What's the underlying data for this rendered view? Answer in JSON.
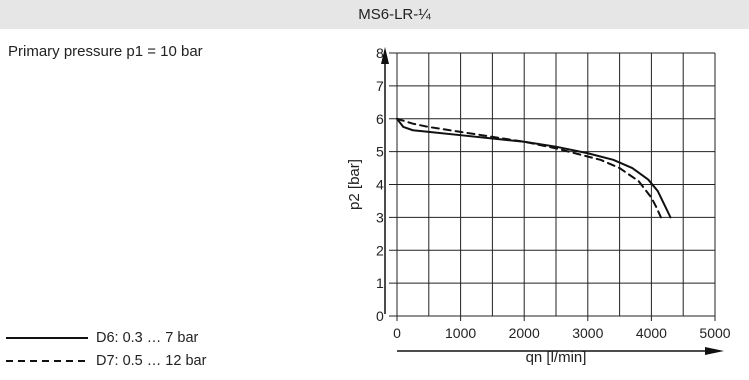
{
  "header": {
    "title": "MS6-LR-¼"
  },
  "condition_text": "Primary pressure p1 = 10 bar",
  "legend": [
    {
      "label": "D6: 0.3 … 7 bar",
      "style": "solid"
    },
    {
      "label": "D7: 0.5 … 12 bar",
      "style": "dashed"
    }
  ],
  "chart_data": {
    "type": "line",
    "title": "MS6-LR-¼",
    "xlabel": "qn [l/min]",
    "ylabel": "p2 [bar]",
    "xlim": [
      0,
      5000
    ],
    "ylim": [
      0,
      8
    ],
    "xticks": [
      "0",
      "1000",
      "2000",
      "3000",
      "4000",
      "5000"
    ],
    "yticks": [
      "0",
      "1",
      "2",
      "3",
      "4",
      "5",
      "6",
      "7",
      "8"
    ],
    "grid": true,
    "series": [
      {
        "name": "D6: 0.3 … 7 bar",
        "style": "solid",
        "x": [
          0,
          100,
          250,
          500,
          1000,
          1500,
          2000,
          2500,
          3000,
          3400,
          3700,
          3950,
          4100,
          4200,
          4300
        ],
        "y": [
          6.0,
          5.75,
          5.65,
          5.6,
          5.5,
          5.4,
          5.3,
          5.15,
          4.95,
          4.75,
          4.5,
          4.15,
          3.8,
          3.4,
          3.0
        ]
      },
      {
        "name": "D7: 0.5 … 12 bar",
        "style": "dashed",
        "x": [
          0,
          250,
          500,
          1000,
          1500,
          2000,
          2500,
          2800,
          3200,
          3500,
          3800,
          4000,
          4080,
          4150
        ],
        "y": [
          6.0,
          5.85,
          5.75,
          5.6,
          5.45,
          5.3,
          5.1,
          4.95,
          4.75,
          4.5,
          4.1,
          3.6,
          3.3,
          3.0
        ]
      }
    ],
    "colors": {
      "line": "#111111",
      "grid": "#222222"
    }
  }
}
